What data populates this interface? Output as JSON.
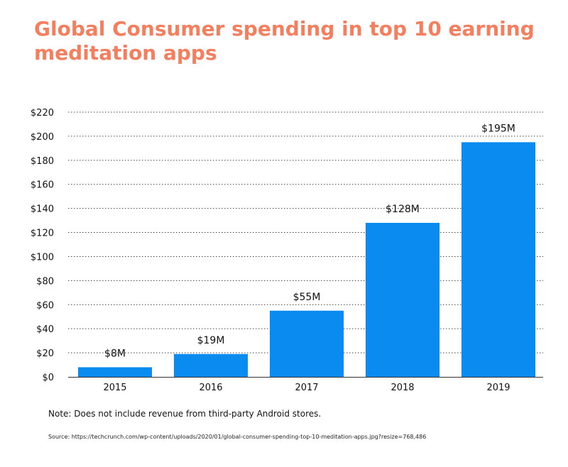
{
  "chart_data": {
    "type": "bar",
    "title": "Global Consumer spending in top 10 earning meditation apps",
    "categories": [
      "2015",
      "2016",
      "2017",
      "2018",
      "2019"
    ],
    "values": [
      8,
      19,
      55,
      128,
      195
    ],
    "data_labels": [
      "$8M",
      "$19M",
      "$55M",
      "$128M",
      "$195M"
    ],
    "xlabel": "",
    "ylabel": "",
    "ylim": [
      0,
      220
    ],
    "yticks": [
      0,
      20,
      40,
      60,
      80,
      100,
      120,
      140,
      160,
      180,
      200,
      220
    ],
    "ytick_labels": [
      "$0",
      "$20",
      "$40",
      "$60",
      "$80",
      "$100",
      "$120",
      "$140",
      "$160",
      "$180",
      "$200",
      "$220"
    ],
    "grid": "dotted horizontal lines",
    "bar_color": "#0a8bf0"
  },
  "note": "Note: Does not include revenue from third-party Android stores.",
  "source": "Source: https://techcrunch.com/wp-content/uploads/2020/01/global-consumer-spending-top-10-meditation-apps.jpg?resize=768,486",
  "colors": {
    "title": "#f47f5f",
    "bars": "#0a8bf0",
    "text": "#111111",
    "grid": "#444444"
  }
}
